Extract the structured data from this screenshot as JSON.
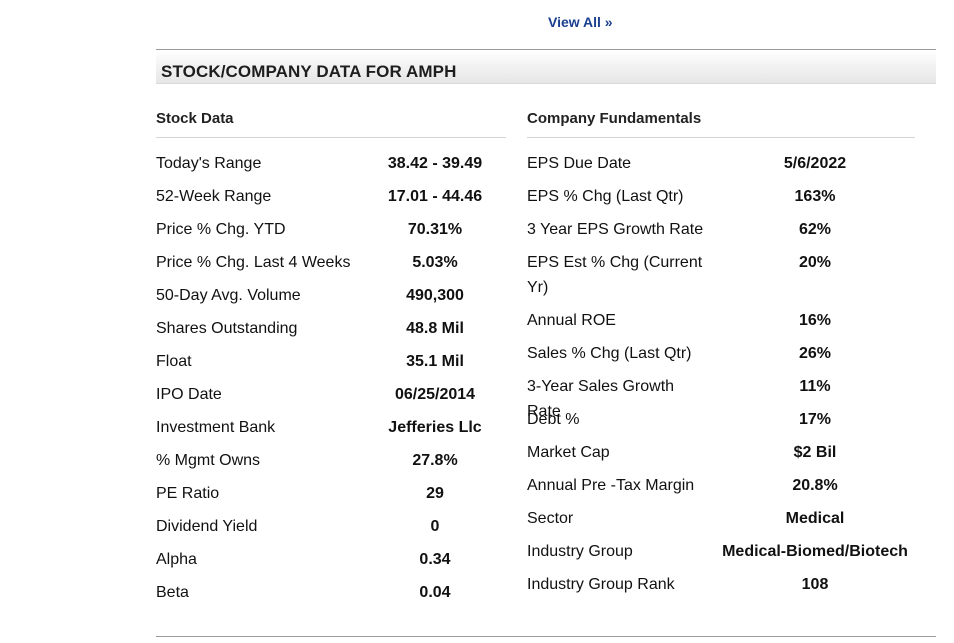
{
  "view_all": "View All »",
  "section_title": "STOCK/COMPANY DATA FOR AMPH",
  "stock_data": {
    "title": "Stock Data",
    "rows": [
      {
        "label": "Today's Range",
        "value": "38.42  -  39.49"
      },
      {
        "label": "52-Week Range",
        "value": "17.01  -  44.46"
      },
      {
        "label": "Price % Chg. YTD",
        "value": "70.31%"
      },
      {
        "label": "Price % Chg. Last 4 Weeks",
        "value": "5.03%"
      },
      {
        "label": "50-Day Avg. Volume",
        "value": "490,300"
      },
      {
        "label": "Shares Outstanding",
        "value": "48.8 Mil"
      },
      {
        "label": "Float",
        "value": "35.1 Mil"
      },
      {
        "label": "IPO Date",
        "value": "06/25/2014"
      },
      {
        "label": "Investment Bank",
        "value": "Jefferies Llc"
      },
      {
        "label": "% Mgmt Owns",
        "value": "27.8%"
      },
      {
        "label": "PE Ratio",
        "value": "29"
      },
      {
        "label": "Dividend Yield",
        "value": "0"
      },
      {
        "label": "Alpha",
        "value": "0.34"
      },
      {
        "label": "Beta",
        "value": "0.04"
      }
    ]
  },
  "company_fundamentals": {
    "title": "Company Fundamentals",
    "rows": [
      {
        "label": "EPS Due Date",
        "value": "5/6/2022"
      },
      {
        "label": "EPS % Chg (Last Qtr)",
        "value": "163%"
      },
      {
        "label": "3 Year EPS Growth Rate",
        "value": "62%"
      },
      {
        "label": "EPS Est % Chg (Current Yr)",
        "value": "20%"
      },
      {
        "label": "Annual ROE",
        "value": "16%"
      },
      {
        "label": "Sales % Chg (Last Qtr)",
        "value": "26%"
      },
      {
        "label": "3-Year Sales Growth Rate",
        "value": "11%"
      },
      {
        "label": "Debt %",
        "value": "17%"
      },
      {
        "label": "Market Cap",
        "value": "$2 Bil"
      },
      {
        "label": "Annual Pre -Tax Margin",
        "value": "20.8%"
      },
      {
        "label": "Sector",
        "value": "Medical"
      },
      {
        "label": "Industry Group",
        "value": "Medical-Biomed/Biotech"
      },
      {
        "label": "Industry Group Rank",
        "value": "108"
      }
    ]
  }
}
